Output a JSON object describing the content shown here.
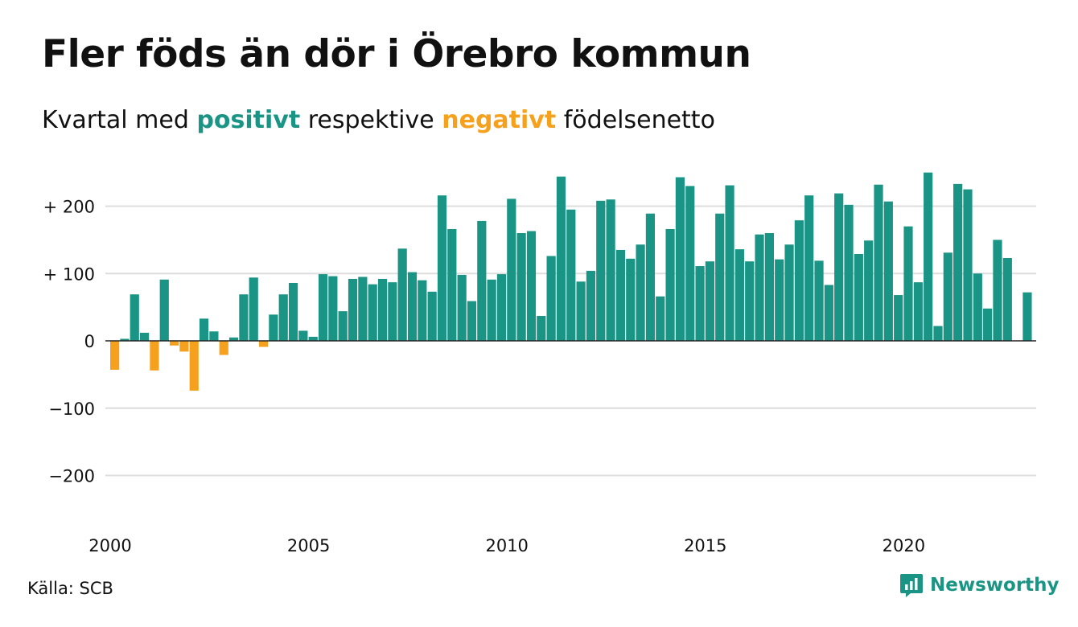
{
  "title": "Fler föds än dör i Örebro kommun",
  "subtitle": {
    "prefix": "Kvartal med",
    "positive_word": "positivt",
    "middle": "respektive",
    "negative_word": "negativt",
    "suffix": "födelsenetto"
  },
  "colors": {
    "positive": "#1a9585",
    "negative": "#f5a11d",
    "grid": "#dddddd",
    "zero_line": "#222222",
    "text": "#111111"
  },
  "source": "Källa: SCB",
  "brand": {
    "name": "Newsworthy",
    "icon": "newsworthy-logo-icon"
  },
  "chart_data": {
    "type": "bar",
    "title": "Fler föds än dör i Örebro kommun",
    "xlabel": "",
    "ylabel": "",
    "x_ticks": [
      2000,
      2005,
      2010,
      2015,
      2020
    ],
    "y_ticks": [
      {
        "value": 200,
        "label": "+ 200"
      },
      {
        "value": 100,
        "label": "+ 100"
      },
      {
        "value": 0,
        "label": "0"
      },
      {
        "value": -100,
        "label": "−100"
      },
      {
        "value": -200,
        "label": "−200"
      }
    ],
    "ylim": [
      -200,
      200
    ],
    "grid": true,
    "period_start": "2000 Q1",
    "period": "quarter",
    "values": [
      -43,
      3,
      69,
      12,
      -44,
      91,
      -7,
      -16,
      -74,
      33,
      14,
      -21,
      5,
      69,
      94,
      -9,
      39,
      69,
      86,
      15,
      6,
      99,
      96,
      44,
      92,
      95,
      84,
      92,
      87,
      137,
      102,
      90,
      73,
      216,
      166,
      98,
      59,
      178,
      91,
      99,
      211,
      160,
      163,
      37,
      126,
      244,
      195,
      88,
      104,
      208,
      210,
      135,
      122,
      143,
      189,
      66,
      166,
      243,
      230,
      111,
      118,
      189,
      231,
      136,
      118,
      158,
      160,
      121,
      143,
      179,
      216,
      119,
      83,
      219,
      202,
      129,
      149,
      232,
      207,
      68,
      170,
      87,
      250,
      22,
      131,
      233,
      225,
      100,
      48,
      150,
      123,
      0,
      72
    ]
  }
}
